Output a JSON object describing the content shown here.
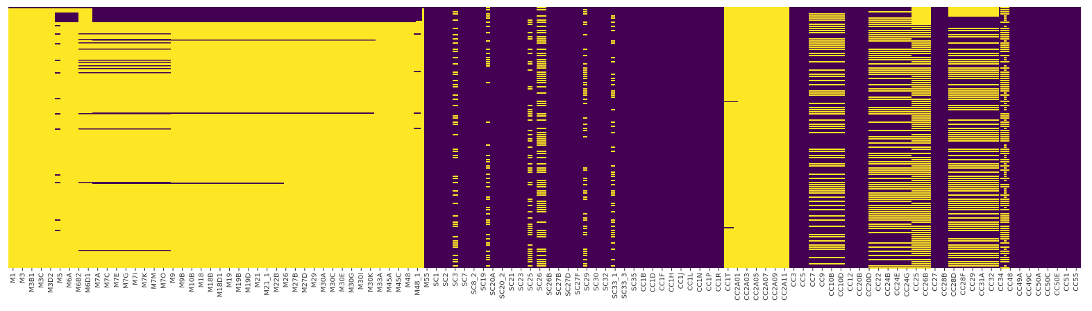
{
  "chart_data": {
    "type": "heatmap",
    "title": "",
    "xlabel": "",
    "ylabel": "",
    "legend": "none",
    "grid": false,
    "colors": {
      "present": "#fde725",
      "missing": "#440154"
    },
    "x_tick_labels": [
      "M1",
      "M3",
      "M3B1",
      "M3C",
      "M3D2",
      "M5",
      "M6A",
      "M6B2",
      "M6D1",
      "M7A",
      "M7C",
      "M7E",
      "M7G",
      "M7I",
      "M7K",
      "M7M",
      "M7O",
      "M9",
      "M9B",
      "M10B",
      "M18",
      "M18B",
      "M18D1",
      "M19",
      "M19B",
      "M19D",
      "M21",
      "M21_1",
      "M22B",
      "M26",
      "M27B",
      "M27D",
      "M29",
      "M30A",
      "M30C",
      "M30E",
      "M30G",
      "M30I",
      "M30K",
      "M33A",
      "M45A",
      "M45C",
      "M48",
      "M48_1",
      "M55",
      "SC1",
      "SC2",
      "SC3",
      "SC7",
      "SC8_2",
      "SC19",
      "SC20A",
      "SC20_2",
      "SC21",
      "SC23",
      "SC25",
      "SC26",
      "SC26B",
      "SC27B",
      "SC27D",
      "SC27F",
      "SC29",
      "SC30",
      "SC32",
      "SC33_1",
      "SC33_3",
      "SC35",
      "CC1B",
      "CC1D",
      "CC1F",
      "CC1H",
      "CC1J",
      "CC1L",
      "CC1N",
      "CC1P",
      "CC1R",
      "CC1T",
      "CC2A01",
      "CC2A03",
      "CC2A05",
      "CC2A07",
      "CC2A09",
      "CC2A11",
      "CC3",
      "CC5",
      "CC7",
      "CC9",
      "CC10B",
      "CC10D",
      "CC12",
      "CC20B",
      "CC20D",
      "CC22",
      "CC24B",
      "CC24E",
      "CC24G",
      "CC25",
      "CC26B",
      "CC27",
      "CC28B",
      "CC28D",
      "CC28F",
      "CC29",
      "CC31A",
      "CC32",
      "CC34",
      "CC48",
      "CC49A",
      "CC49C",
      "CC50A",
      "CC50C",
      "CC50E",
      "CC51",
      "CC55"
    ],
    "blocks": [
      {
        "from": "M1",
        "to": "M55",
        "value": "present",
        "note_lines": [
          "M5 row streaks",
          "M7A-M48 row streaks"
        ]
      },
      {
        "from": "SC1",
        "to": "CC1T",
        "value": "missing",
        "sparse_present_columns": [
          "SC3",
          "SC20A",
          "SC25",
          "SC26",
          "SC26B",
          "SC29",
          "SC33_1"
        ]
      },
      {
        "from": "CC2A01",
        "to": "CC2A11",
        "value": "present"
      },
      {
        "from": "CC3",
        "to": "CC55",
        "value": "mixed",
        "dense_present_columns": [
          "CC3",
          "CC9",
          "CC10B",
          "CC10D",
          "CC24B",
          "CC24E",
          "CC24G",
          "CC25",
          "CC26B",
          "CC27",
          "CC28B",
          "CC28D",
          "CC31A",
          "CC32",
          "CC34",
          "CC48"
        ]
      }
    ]
  }
}
